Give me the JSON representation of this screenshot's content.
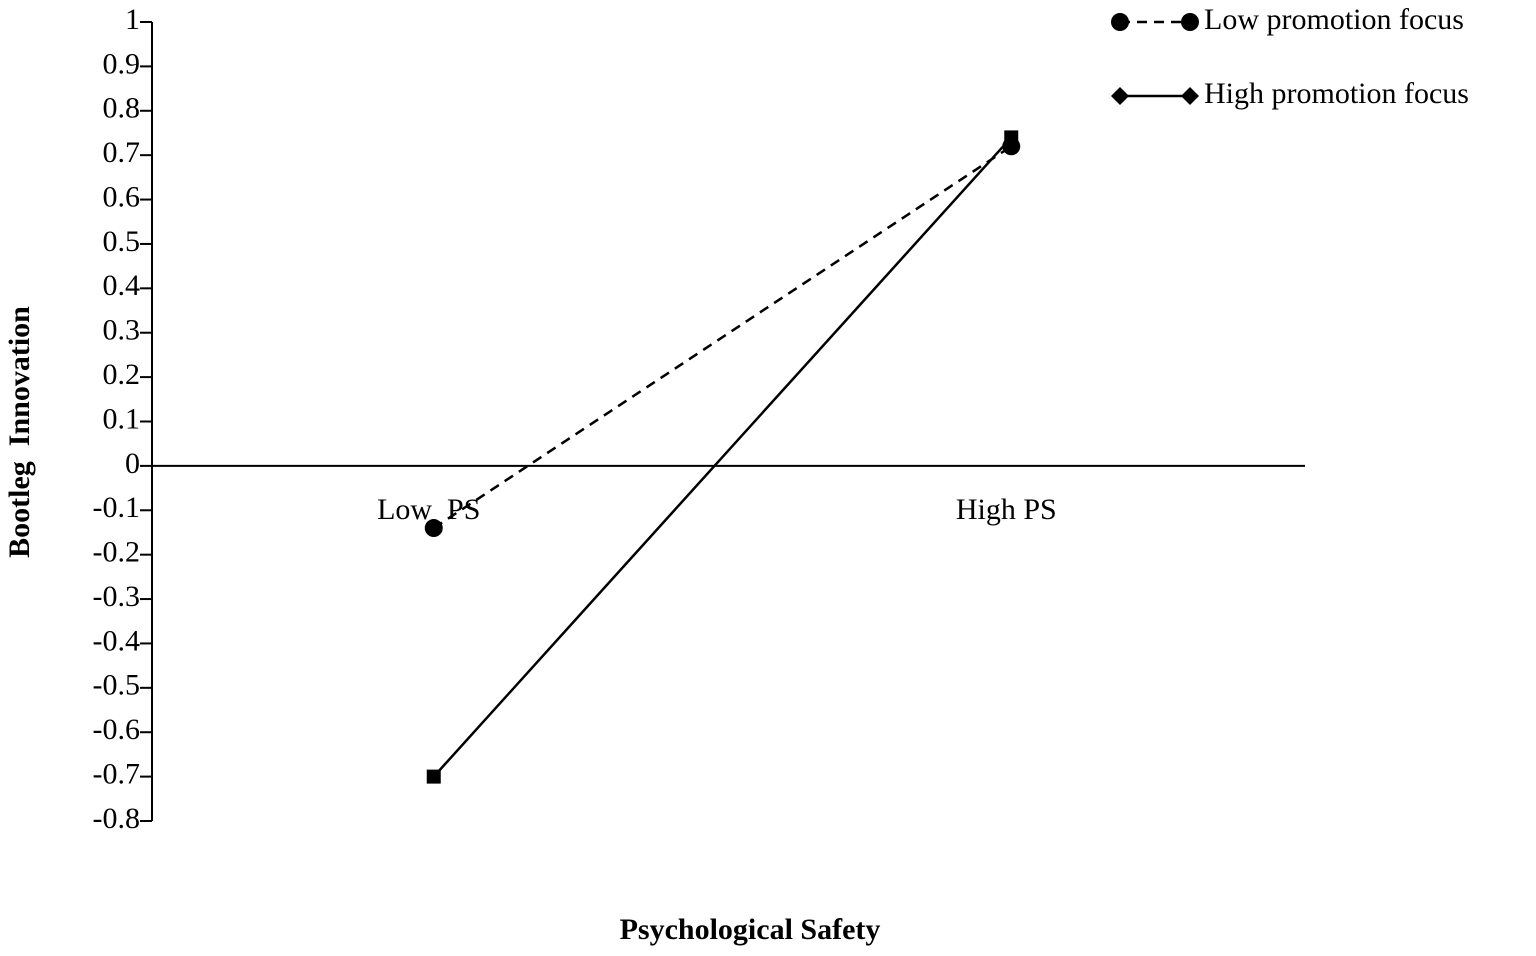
{
  "chart_data": {
    "type": "line",
    "x_label": "Psychological Safety",
    "y_label": "Bootleg  Innovation",
    "categories": [
      "Low  PS",
      "High PS"
    ],
    "series": [
      {
        "name": "Low promotion focus",
        "color": "#000000",
        "dash": "dashed",
        "marker": "circle",
        "legend_marker": "circle",
        "values": [
          -0.14,
          0.72
        ]
      },
      {
        "name": "High promotion focus",
        "color": "#000000",
        "dash": "solid",
        "marker": "square",
        "legend_marker": "diamond",
        "values": [
          -0.7,
          0.74
        ]
      }
    ],
    "ylim": [
      -0.8,
      1
    ],
    "yticks": [
      1,
      0.9,
      0.8,
      0.7,
      0.6,
      0.5,
      0.4,
      0.3,
      0.2,
      0.1,
      0,
      -0.1,
      -0.2,
      -0.3,
      -0.4,
      -0.5,
      -0.6,
      -0.7,
      -0.8
    ],
    "legend": "top-right"
  }
}
